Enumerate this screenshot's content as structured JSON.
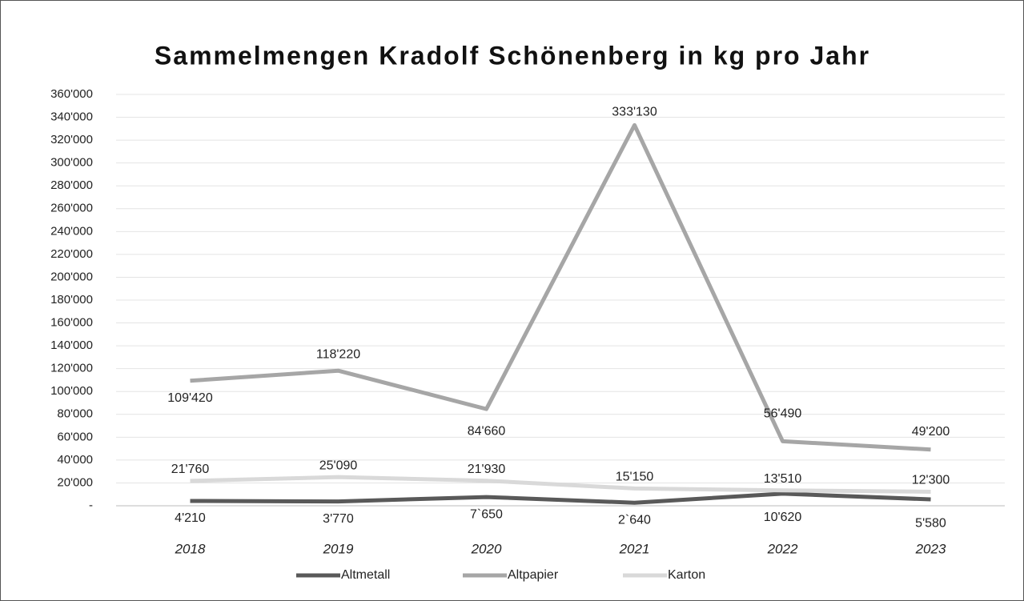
{
  "chart_data": {
    "type": "line",
    "title": "Sammelmengen Kradolf Schönenberg in kg pro Jahr",
    "categories": [
      "2018",
      "2019",
      "2020",
      "2021",
      "2022",
      "2023"
    ],
    "series": [
      {
        "name": "Altmetall",
        "color": "#595959",
        "values": [
          4210,
          3770,
          7650,
          2640,
          10620,
          5580
        ],
        "value_labels": [
          "4'210",
          "3'770",
          "7`650",
          "2`640",
          "10'620",
          "5'580"
        ]
      },
      {
        "name": "Altpapier",
        "color": "#a6a6a6",
        "values": [
          109420,
          118220,
          84660,
          333130,
          56490,
          49200
        ],
        "value_labels": [
          "109'420",
          "118'220",
          "84'660",
          "333'130",
          "56'490",
          "49'200"
        ]
      },
      {
        "name": "Karton",
        "color": "#d9d9d9",
        "values": [
          21760,
          25090,
          21930,
          15150,
          13510,
          12300
        ],
        "value_labels": [
          "21'760",
          "25'090",
          "21'930",
          "15'150",
          "13'510",
          "12'300"
        ]
      }
    ],
    "ylim": [
      0,
      360000
    ],
    "yticks": [
      {
        "value": 0,
        "label": "-"
      },
      {
        "value": 20000,
        "label": "20'000"
      },
      {
        "value": 40000,
        "label": "40'000"
      },
      {
        "value": 60000,
        "label": "60'000"
      },
      {
        "value": 80000,
        "label": "80'000"
      },
      {
        "value": 100000,
        "label": "100'000"
      },
      {
        "value": 120000,
        "label": "120'000"
      },
      {
        "value": 140000,
        "label": "140'000"
      },
      {
        "value": 160000,
        "label": "160'000"
      },
      {
        "value": 180000,
        "label": "180'000"
      },
      {
        "value": 200000,
        "label": "200'000"
      },
      {
        "value": 220000,
        "label": "220'000"
      },
      {
        "value": 240000,
        "label": "240'000"
      },
      {
        "value": 260000,
        "label": "260'000"
      },
      {
        "value": 280000,
        "label": "280'000"
      },
      {
        "value": 300000,
        "label": "300'000"
      },
      {
        "value": 320000,
        "label": "320'000"
      },
      {
        "value": 340000,
        "label": "340'000"
      },
      {
        "value": 360000,
        "label": "360'000"
      }
    ],
    "grid": true,
    "legend": "bottom"
  }
}
